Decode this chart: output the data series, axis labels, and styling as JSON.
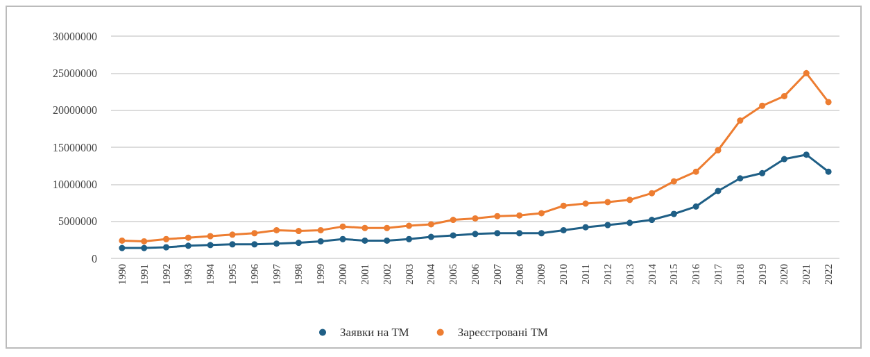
{
  "chart_data": {
    "type": "line",
    "categories": [
      "1990",
      "1991",
      "1992",
      "1993",
      "1994",
      "1995",
      "1996",
      "1997",
      "1998",
      "1999",
      "2000",
      "2001",
      "2002",
      "2003",
      "2004",
      "2005",
      "2006",
      "2007",
      "2008",
      "2009",
      "2010",
      "2011",
      "2012",
      "2013",
      "2014",
      "2015",
      "2016",
      "2017",
      "2018",
      "2019",
      "2020",
      "2021",
      "2022"
    ],
    "series": [
      {
        "name": "Заявки на ТМ",
        "color": "#1f5f86",
        "values": [
          1400000,
          1400000,
          1500000,
          1700000,
          1800000,
          1900000,
          1900000,
          2000000,
          2100000,
          2300000,
          2600000,
          2400000,
          2400000,
          2600000,
          2900000,
          3100000,
          3300000,
          3400000,
          3400000,
          3400000,
          3800000,
          4200000,
          4500000,
          4800000,
          5200000,
          6000000,
          7000000,
          9100000,
          10800000,
          11500000,
          13400000,
          14000000,
          11700000
        ]
      },
      {
        "name": "Зареєстровані ТМ",
        "color": "#ed7d31",
        "values": [
          2400000,
          2300000,
          2600000,
          2800000,
          3000000,
          3200000,
          3400000,
          3800000,
          3700000,
          3800000,
          4300000,
          4100000,
          4100000,
          4400000,
          4600000,
          5200000,
          5400000,
          5700000,
          5800000,
          6100000,
          7100000,
          7400000,
          7600000,
          7900000,
          8800000,
          10400000,
          11700000,
          14600000,
          18600000,
          20600000,
          21900000,
          25000000,
          21100000
        ]
      }
    ],
    "ylim": [
      0,
      30000000
    ],
    "yticks": [
      0,
      5000000,
      10000000,
      15000000,
      20000000,
      25000000,
      30000000
    ],
    "grid": "y",
    "legend": "bottom",
    "marker": "circle",
    "line_style": "solid"
  }
}
